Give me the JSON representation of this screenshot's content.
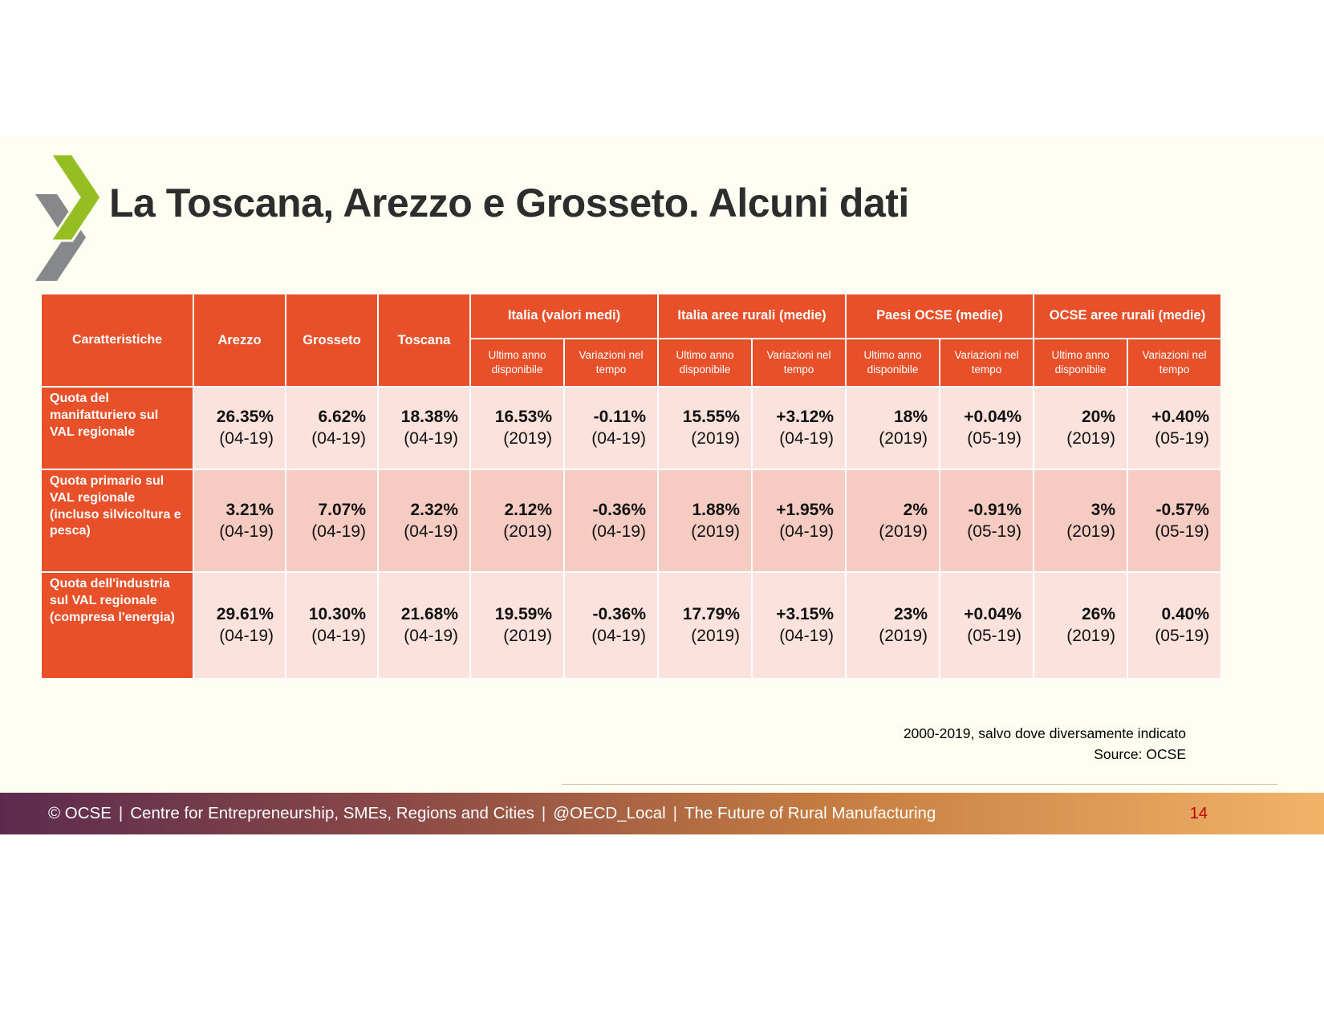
{
  "colors": {
    "accent": "#E8502A",
    "row_light": "#FBE2DC",
    "row_dark": "#F5CBC2",
    "slide_bg": "#FFFEF2",
    "footer_g1": "#5C2B4E",
    "footer_g2": "#8A4947",
    "footer_g3": "#C47B40",
    "footer_g4": "#F2B369",
    "page_number": "#C00000",
    "logo_green": "#95BE22",
    "logo_gray": "#87888A"
  },
  "slide": {
    "title": "La Toscana, Arezzo e Grosseto. Alcuni dati",
    "notes": {
      "line1": "2000-2019, salvo dove diversamente indicato",
      "line2": "Source: OCSE"
    },
    "footer": {
      "parts": [
        "© OCSE",
        "|",
        "Centre for Entrepreneurship, SMEs, Regions and Cities",
        "|",
        "@OECD_Local",
        "|",
        "The Future of Rural Manufacturing"
      ],
      "page": "14"
    }
  },
  "table": {
    "corner_header": "Caratteristiche",
    "region_headers": [
      "Arezzo",
      "Grosseto",
      "Toscana"
    ],
    "group_headers": [
      "Italia (valori medi)",
      "Italia aree rurali (medie)",
      "Paesi OCSE (medie)",
      "OCSE aree rurali (medie)"
    ],
    "sub_headers": [
      "Ultimo anno disponibile",
      "Variazioni nel tempo"
    ],
    "rows": [
      {
        "label": "Quota del manifatturiero sul VAL regionale",
        "cells": [
          {
            "v": "26.35%",
            "p": "(04-19)"
          },
          {
            "v": "6.62%",
            "p": "(04-19)"
          },
          {
            "v": "18.38%",
            "p": "(04-19)"
          },
          {
            "v": "16.53%",
            "p": "(2019)"
          },
          {
            "v": "-0.11%",
            "p": "(04-19)"
          },
          {
            "v": "15.55%",
            "p": "(2019)"
          },
          {
            "v": "+3.12%",
            "p": "(04-19)"
          },
          {
            "v": "18%",
            "p": "(2019)"
          },
          {
            "v": "+0.04%",
            "p": "(05-19)"
          },
          {
            "v": "20%",
            "p": "(2019)"
          },
          {
            "v": "+0.40%",
            "p": "(05-19)"
          }
        ]
      },
      {
        "label": "Quota primario sul VAL regionale (incluso silvicoltura e pesca)",
        "cells": [
          {
            "v": "3.21%",
            "p": "(04-19)"
          },
          {
            "v": "7.07%",
            "p": "(04-19)"
          },
          {
            "v": "2.32%",
            "p": "(04-19)"
          },
          {
            "v": "2.12%",
            "p": "(2019)"
          },
          {
            "v": "-0.36%",
            "p": "(04-19)"
          },
          {
            "v": "1.88%",
            "p": "(2019)"
          },
          {
            "v": "+1.95%",
            "p": "(04-19)"
          },
          {
            "v": "2%",
            "p": "(2019)"
          },
          {
            "v": "-0.91%",
            "p": "(05-19)"
          },
          {
            "v": "3%",
            "p": "(2019)"
          },
          {
            "v": "-0.57%",
            "p": "(05-19)"
          }
        ]
      },
      {
        "label": "Quota dell'industria sul VAL regionale (compresa l'energia)",
        "cells": [
          {
            "v": "29.61%",
            "p": "(04-19)"
          },
          {
            "v": "10.30%",
            "p": "(04-19)"
          },
          {
            "v": "21.68%",
            "p": "(04-19)"
          },
          {
            "v": "19.59%",
            "p": "(2019)"
          },
          {
            "v": "-0.36%",
            "p": "(04-19)"
          },
          {
            "v": "17.79%",
            "p": "(2019)"
          },
          {
            "v": "+3.15%",
            "p": "(04-19)"
          },
          {
            "v": "23%",
            "p": "(2019)"
          },
          {
            "v": "+0.04%",
            "p": "(05-19)"
          },
          {
            "v": "26%",
            "p": "(2019)"
          },
          {
            "v": "0.40%",
            "p": "(05-19)"
          }
        ]
      }
    ]
  }
}
